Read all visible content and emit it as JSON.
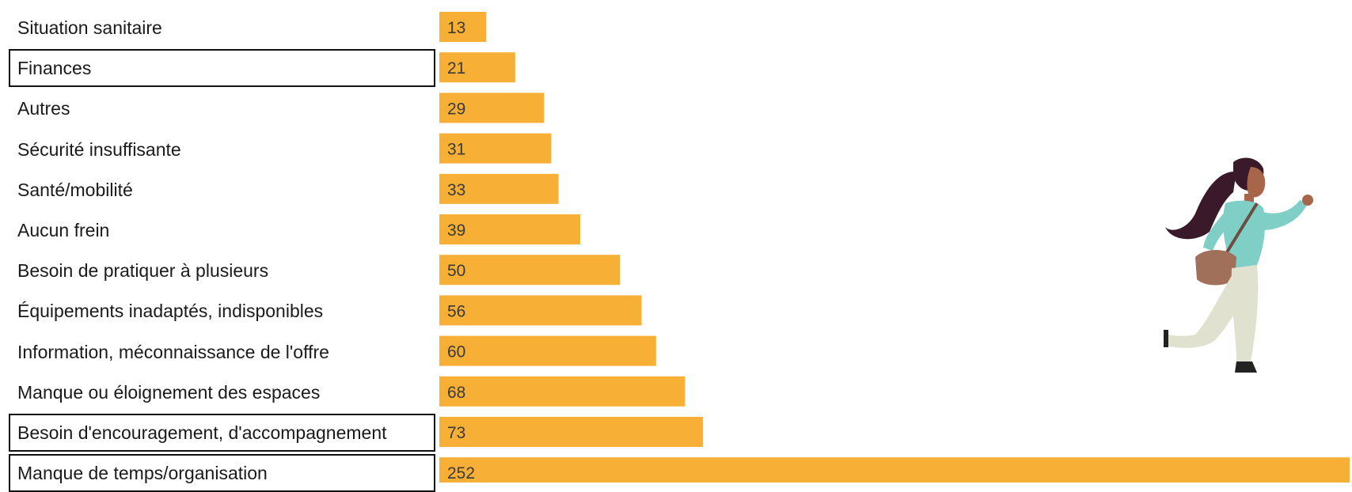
{
  "chart_data": {
    "type": "bar",
    "orientation": "horizontal",
    "categories": [
      "Situation sanitaire",
      "Finances",
      "Autres",
      "Sécurité insuffisante",
      "Santé/mobilité",
      "Aucun frein",
      "Besoin de pratiquer à plusieurs",
      "Équipements inadaptés, indisponibles",
      "Information, méconnaissance de l'offre",
      "Manque ou éloignement des espaces",
      "Besoin d'encouragement, d'accompagnement",
      "Manque de temps/organisation"
    ],
    "values": [
      13,
      21,
      29,
      31,
      33,
      39,
      50,
      56,
      60,
      68,
      73,
      252
    ],
    "highlighted": [
      "Finances",
      "Besoin d'encouragement, d'accompagnement",
      "Manque de temps/organisation"
    ],
    "bar_color": "#F7B035",
    "data_labels": true,
    "grid": false
  },
  "illustration": {
    "name": "woman-running-illustration"
  }
}
